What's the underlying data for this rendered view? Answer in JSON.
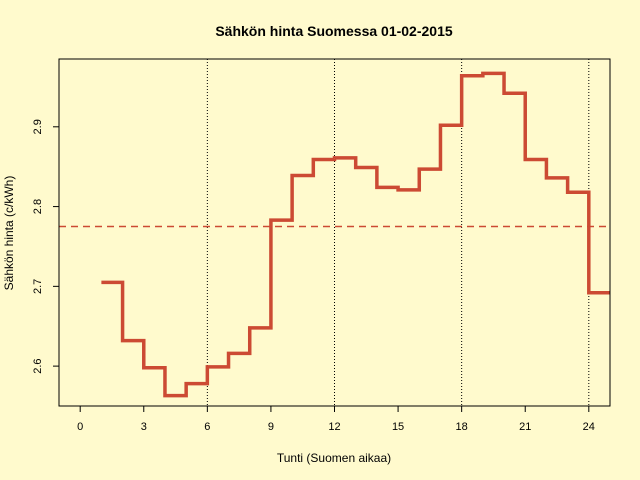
{
  "chart_data": {
    "type": "line",
    "step": true,
    "title": "Sähkön hinta Suomessa 01-02-2015",
    "xlabel": "Tunti (Suomen aikaa)",
    "ylabel": "Sähkön hinta (c/kWh)",
    "xlim": [
      -1,
      25
    ],
    "ylim": [
      2.55,
      2.985
    ],
    "x_ticks": [
      0,
      3,
      6,
      9,
      12,
      15,
      18,
      21,
      24
    ],
    "y_ticks": [
      2.6,
      2.7,
      2.8,
      2.9
    ],
    "vertical_gridlines_at": [
      6,
      12,
      18,
      24
    ],
    "colors": {
      "series": "#cc4a33",
      "background": "#fffacd",
      "gridline": "#000000",
      "axis": "#000000"
    },
    "series": [
      {
        "x": [
          1,
          2,
          3,
          4,
          5,
          6,
          7,
          8,
          9,
          10,
          11,
          12,
          13,
          14,
          15,
          16,
          17,
          18,
          19,
          20,
          21,
          22,
          23,
          24,
          25
        ],
        "values": [
          2.705,
          2.632,
          2.598,
          2.563,
          2.578,
          2.599,
          2.616,
          2.648,
          2.783,
          2.839,
          2.859,
          2.861,
          2.849,
          2.824,
          2.821,
          2.847,
          2.902,
          2.964,
          2.967,
          2.942,
          2.859,
          2.836,
          2.818,
          2.692,
          2.692
        ]
      }
    ],
    "reference_lines": [
      {
        "orientation": "horizontal",
        "value": 2.775,
        "style": "dashed"
      }
    ]
  }
}
